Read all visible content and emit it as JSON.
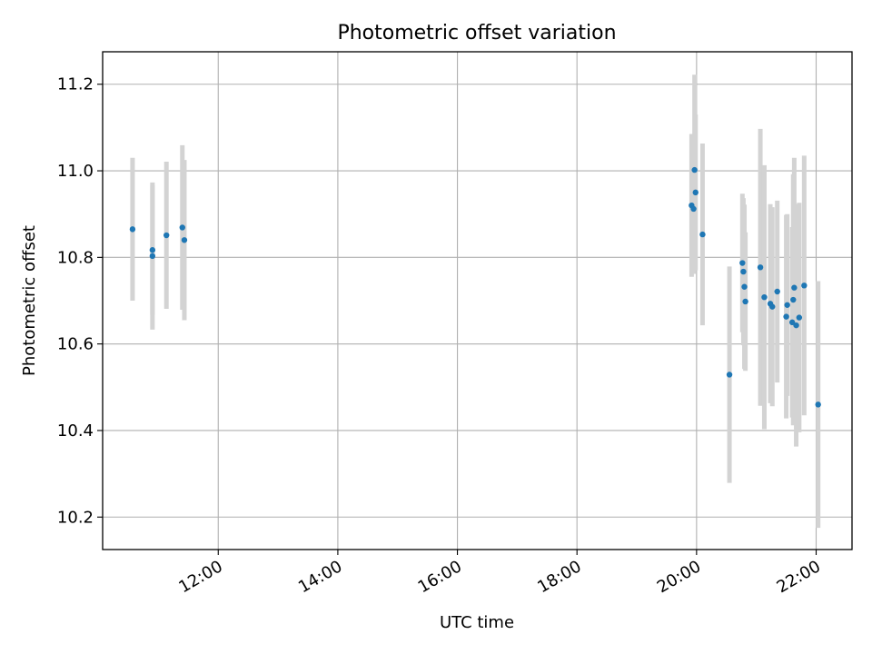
{
  "chart_data": {
    "type": "scatter",
    "title": "Photometric offset variation",
    "xlabel": "UTC time",
    "ylabel": "Photometric offset",
    "grid": true,
    "xlim": [
      "10:04",
      "22:36"
    ],
    "ylim": [
      10.125,
      11.275
    ],
    "x_ticks": [
      "12:00",
      "14:00",
      "16:00",
      "18:00",
      "20:00",
      "22:00"
    ],
    "y_ticks": [
      "10.2",
      "10.4",
      "10.6",
      "10.8",
      "11.0",
      "11.2"
    ],
    "colors": {
      "point": "#1f77b4",
      "error_bar": "#d3d3d3",
      "grid": "#b0b0b0"
    },
    "points": [
      {
        "t": "10:34",
        "y": 10.865,
        "err": 0.165
      },
      {
        "t": "10:54",
        "y": 10.817,
        "err": 0.15
      },
      {
        "t": "10:54",
        "y": 10.803,
        "err": 0.17
      },
      {
        "t": "11:08",
        "y": 10.851,
        "err": 0.17
      },
      {
        "t": "11:24",
        "y": 10.869,
        "err": 0.19
      },
      {
        "t": "11:26",
        "y": 10.84,
        "err": 0.185
      },
      {
        "t": "19:55",
        "y": 10.92,
        "err": 0.165
      },
      {
        "t": "19:57",
        "y": 10.912,
        "err": 0.15
      },
      {
        "t": "19:58",
        "y": 11.002,
        "err": 0.22
      },
      {
        "t": "19:59",
        "y": 10.95,
        "err": 0.18
      },
      {
        "t": "20:06",
        "y": 10.853,
        "err": 0.21
      },
      {
        "t": "20:33",
        "y": 10.529,
        "err": 0.25
      },
      {
        "t": "20:46",
        "y": 10.787,
        "err": 0.16
      },
      {
        "t": "20:47",
        "y": 10.767,
        "err": 0.17
      },
      {
        "t": "20:48",
        "y": 10.732,
        "err": 0.19
      },
      {
        "t": "20:49",
        "y": 10.698,
        "err": 0.16
      },
      {
        "t": "21:04",
        "y": 10.777,
        "err": 0.32
      },
      {
        "t": "21:08",
        "y": 10.708,
        "err": 0.305
      },
      {
        "t": "21:14",
        "y": 10.693,
        "err": 0.23
      },
      {
        "t": "21:16",
        "y": 10.686,
        "err": 0.23
      },
      {
        "t": "21:21",
        "y": 10.721,
        "err": 0.21
      },
      {
        "t": "21:30",
        "y": 10.663,
        "err": 0.235
      },
      {
        "t": "21:31",
        "y": 10.69,
        "err": 0.21
      },
      {
        "t": "21:36",
        "y": 10.65,
        "err": 0.22
      },
      {
        "t": "21:37",
        "y": 10.702,
        "err": 0.29
      },
      {
        "t": "21:38",
        "y": 10.73,
        "err": 0.3
      },
      {
        "t": "21:40",
        "y": 10.643,
        "err": 0.28
      },
      {
        "t": "21:43",
        "y": 10.661,
        "err": 0.265
      },
      {
        "t": "21:48",
        "y": 10.735,
        "err": 0.3
      },
      {
        "t": "22:02",
        "y": 10.46,
        "err": 0.285
      }
    ]
  }
}
